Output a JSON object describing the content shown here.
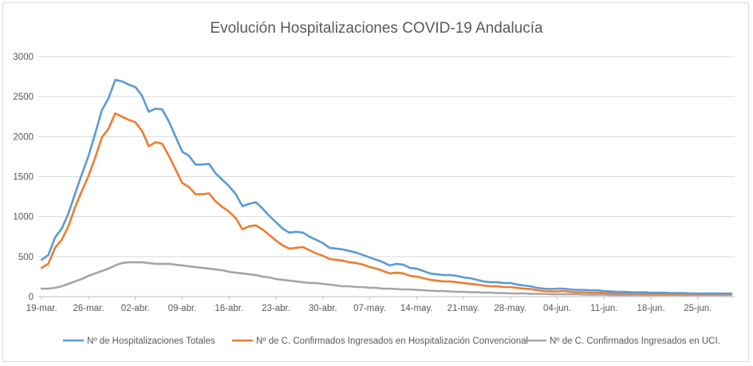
{
  "chart_data": {
    "type": "line",
    "title": "Evolución Hospitalizaciones COVID-19 Andalucía",
    "xlabel": "",
    "ylabel": "",
    "ylim": [
      0,
      3000
    ],
    "yticks": [
      0,
      500,
      1000,
      1500,
      2000,
      2500,
      3000
    ],
    "xtick_labels": [
      "19-mar.",
      "26-mar.",
      "02-abr.",
      "09-abr.",
      "16-abr.",
      "23-abr.",
      "30-abr.",
      "07-may.",
      "14-may.",
      "21-may.",
      "28-may.",
      "04-jun.",
      "11-jun.",
      "18-jun.",
      "25-jun."
    ],
    "x_start": "2020-03-19",
    "grid": "horizontal",
    "legend_position": "bottom",
    "series": [
      {
        "name": "Nº de Hospitalizaciones Totales",
        "color": "#5b9bd5",
        "values": [
          460,
          520,
          740,
          850,
          1040,
          1290,
          1530,
          1760,
          2040,
          2330,
          2480,
          2710,
          2690,
          2650,
          2620,
          2510,
          2310,
          2350,
          2340,
          2190,
          2000,
          1810,
          1760,
          1650,
          1650,
          1660,
          1540,
          1460,
          1380,
          1280,
          1130,
          1160,
          1180,
          1100,
          1010,
          930,
          850,
          800,
          810,
          800,
          750,
          710,
          670,
          610,
          600,
          590,
          570,
          550,
          520,
          490,
          460,
          430,
          390,
          410,
          400,
          360,
          350,
          320,
          290,
          280,
          270,
          270,
          260,
          240,
          230,
          210,
          190,
          180,
          180,
          170,
          170,
          150,
          140,
          130,
          110,
          100,
          95,
          100,
          100,
          90,
          85,
          85,
          80,
          80,
          70,
          65,
          60,
          60,
          55,
          55,
          55,
          50,
          50,
          50,
          45,
          45,
          45,
          40,
          40,
          40,
          40,
          40,
          40,
          40
        ]
      },
      {
        "name": "Nº de C. Confirmados Ingresados en Hospitalización Convencional",
        "color": "#ed7d31",
        "values": [
          360,
          410,
          610,
          710,
          880,
          1120,
          1320,
          1510,
          1740,
          1990,
          2100,
          2290,
          2250,
          2210,
          2180,
          2070,
          1880,
          1930,
          1910,
          1760,
          1590,
          1420,
          1370,
          1280,
          1280,
          1290,
          1190,
          1120,
          1060,
          980,
          840,
          880,
          890,
          840,
          770,
          700,
          640,
          600,
          610,
          620,
          580,
          540,
          510,
          470,
          460,
          450,
          430,
          420,
          400,
          370,
          350,
          320,
          290,
          300,
          290,
          260,
          250,
          230,
          210,
          200,
          190,
          190,
          180,
          170,
          160,
          150,
          140,
          130,
          130,
          120,
          120,
          110,
          100,
          95,
          80,
          70,
          65,
          65,
          70,
          60,
          55,
          55,
          50,
          50,
          45,
          45,
          40,
          40,
          40,
          40,
          40,
          35,
          35,
          35,
          35,
          35,
          35,
          35,
          35,
          35,
          35,
          35,
          35,
          35
        ]
      },
      {
        "name": "Nº de C. Confirmados Ingresados en UCI.",
        "color": "#a5a5a5",
        "values": [
          100,
          100,
          110,
          130,
          160,
          190,
          220,
          260,
          290,
          320,
          350,
          390,
          420,
          430,
          430,
          430,
          420,
          410,
          410,
          410,
          400,
          390,
          380,
          370,
          360,
          350,
          340,
          330,
          310,
          300,
          290,
          280,
          270,
          250,
          240,
          220,
          210,
          200,
          190,
          180,
          170,
          170,
          160,
          150,
          140,
          130,
          130,
          120,
          120,
          110,
          110,
          100,
          100,
          95,
          90,
          90,
          85,
          80,
          75,
          70,
          70,
          65,
          60,
          60,
          55,
          55,
          50,
          50,
          45,
          45,
          40,
          40,
          40,
          35,
          35,
          35,
          30,
          30,
          30,
          30,
          30,
          25,
          25,
          25,
          25,
          20,
          20,
          20,
          20,
          20,
          20,
          20,
          20,
          20,
          20,
          20,
          20,
          20,
          20,
          20,
          20,
          20,
          20,
          20
        ]
      }
    ]
  }
}
